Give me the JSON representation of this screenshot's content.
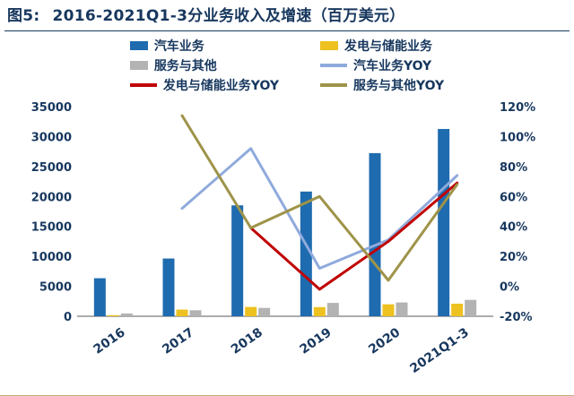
{
  "header": {
    "fig_label": "图5:",
    "title": "2016-2021Q1-3分业务收入及增速（百万美元）"
  },
  "colors": {
    "auto_bar": "#1E6BB0",
    "energy_bar": "#EDC11F",
    "service_bar": "#B3B3B3",
    "auto_line": "#8FAADC",
    "energy_line": "#C00000",
    "service_line": "#9E9348",
    "text": "#17375E",
    "title_rule": "#17375E",
    "bottom_rule": "#BFAE7C"
  },
  "legend": [
    {
      "label": "汽车业务",
      "type": "bar",
      "color_key": "auto_bar"
    },
    {
      "label": "发电与储能业务",
      "type": "bar",
      "color_key": "energy_bar"
    },
    {
      "label": "服务与其他",
      "type": "bar",
      "color_key": "service_bar"
    },
    {
      "label": "汽车业务YOY",
      "type": "line",
      "color_key": "auto_line"
    },
    {
      "label": "发电与储能业务YOY",
      "type": "line",
      "color_key": "energy_line"
    },
    {
      "label": "服务与其他YOY",
      "type": "line",
      "color_key": "service_line"
    }
  ],
  "chart_data": {
    "type": "combo-bar-line",
    "title": "2016-2021Q1-3分业务收入及增速（百万美元）",
    "categories": [
      "2016",
      "2017",
      "2018",
      "2019",
      "2020",
      "2021Q1-3"
    ],
    "bar_series": [
      {
        "name": "汽车业务",
        "color_key": "auto_bar",
        "axis": "left",
        "values": [
          6351,
          9641,
          18515,
          20821,
          27236,
          31265
        ]
      },
      {
        "name": "发电与储能业务",
        "color_key": "energy_bar",
        "axis": "left",
        "values": [
          181,
          1116,
          1555,
          1531,
          1994,
          2101
        ]
      },
      {
        "name": "服务与其他",
        "color_key": "service_bar",
        "axis": "left",
        "values": [
          468,
          1001,
          1391,
          2226,
          2306,
          2738
        ]
      }
    ],
    "line_series": [
      {
        "name": "汽车业务YOY",
        "color_key": "auto_line",
        "axis": "right",
        "values": [
          null,
          52,
          92,
          12,
          31,
          74
        ]
      },
      {
        "name": "发电与储能业务YOY",
        "color_key": "energy_line",
        "axis": "right",
        "values": [
          null,
          null,
          39,
          -2,
          30,
          69
        ]
      },
      {
        "name": "服务与其他YOY",
        "color_key": "service_line",
        "axis": "right",
        "values": [
          null,
          114,
          39,
          60,
          4,
          68
        ]
      }
    ],
    "left_axis": {
      "min": 0,
      "max": 35000,
      "step": 5000,
      "ticks": [
        "0",
        "5000",
        "10000",
        "15000",
        "20000",
        "25000",
        "30000",
        "35000"
      ]
    },
    "right_axis": {
      "min": -20,
      "max": 120,
      "step": 20,
      "ticks": [
        "-20%",
        "0%",
        "20%",
        "40%",
        "60%",
        "80%",
        "100%",
        "120%"
      ]
    },
    "grid": false,
    "legend_position": "top"
  }
}
